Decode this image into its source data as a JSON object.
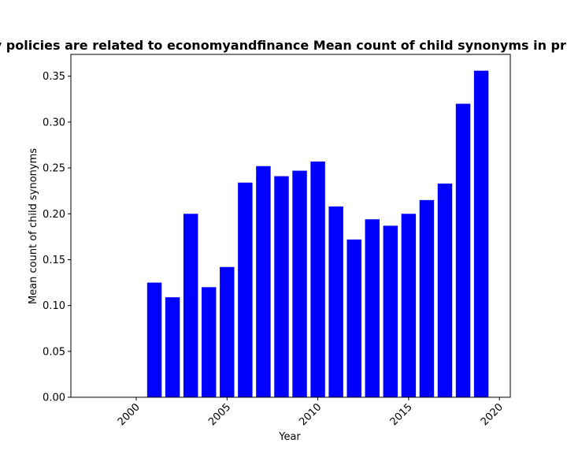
{
  "chart_data": {
    "type": "bar",
    "title": "Percentage of privacy policies are related to economyandfinance Mean count of child synonyms in privacy policies over time",
    "xlabel": "Year",
    "ylabel": "Mean count of child synonyms",
    "bar_color": "#0000ff",
    "x": [
      2001,
      2002,
      2003,
      2004,
      2005,
      2006,
      2007,
      2008,
      2009,
      2010,
      2011,
      2012,
      2013,
      2014,
      2015,
      2016,
      2017,
      2018,
      2019
    ],
    "values": [
      0.125,
      0.109,
      0.2,
      0.12,
      0.142,
      0.234,
      0.252,
      0.241,
      0.247,
      0.257,
      0.208,
      0.172,
      0.194,
      0.187,
      0.2,
      0.215,
      0.233,
      0.32,
      0.356
    ],
    "xlim": [
      1996.4,
      2020.6
    ],
    "ylim": [
      0,
      0.3738
    ],
    "x_ticks": [
      "2000",
      "2005",
      "2010",
      "2015",
      "2020"
    ],
    "y_ticks": [
      "0.00",
      "0.05",
      "0.10",
      "0.15",
      "0.20",
      "0.25",
      "0.30",
      "0.35"
    ],
    "grid": false
  }
}
